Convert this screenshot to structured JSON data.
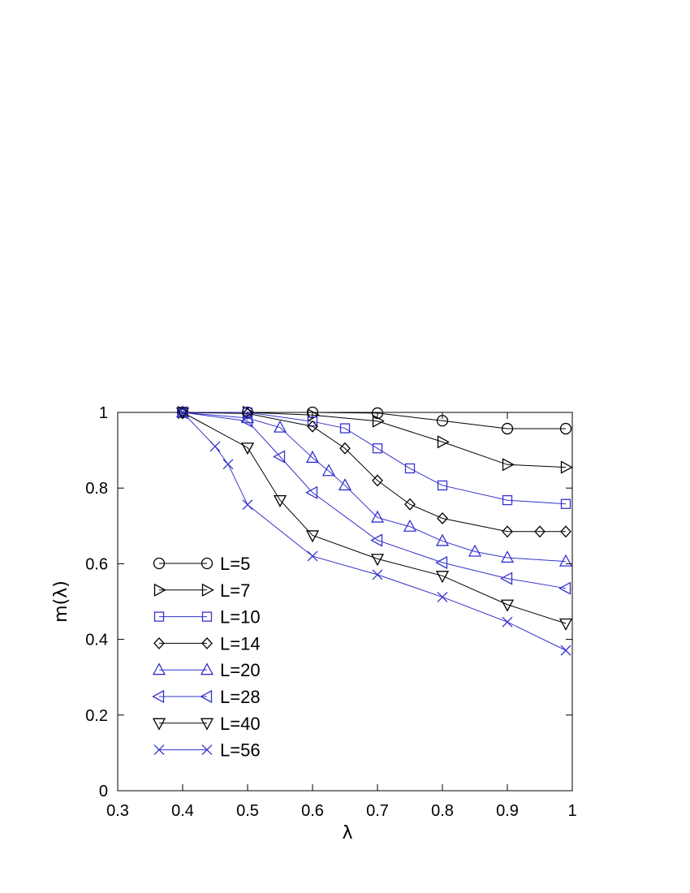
{
  "chart_data": {
    "type": "line",
    "xlabel": "λ",
    "ylabel": "m(λ)",
    "xlim": [
      0.3,
      1.0
    ],
    "ylim": [
      0,
      1.0
    ],
    "xticks": [
      "0.3",
      "0.4",
      "0.5",
      "0.6",
      "0.7",
      "0.8",
      "0.9",
      "1"
    ],
    "yticks": [
      "0",
      "0.2",
      "0.4",
      "0.6",
      "0.8",
      "1"
    ],
    "xtick_values": [
      0.3,
      0.4,
      0.5,
      0.6,
      0.7,
      0.8,
      0.9,
      1.0
    ],
    "ytick_values": [
      0,
      0.2,
      0.4,
      0.6,
      0.8,
      1.0
    ],
    "grid": false,
    "legend_position": "lower-left",
    "series": [
      {
        "name": "L=5",
        "marker": "circle",
        "color": "#000000",
        "x": [
          0.4,
          0.5,
          0.6,
          0.7,
          0.8,
          0.9,
          0.99
        ],
        "y": [
          1.0,
          1.0,
          1.0,
          0.998,
          0.978,
          0.957,
          0.957
        ]
      },
      {
        "name": "L=7",
        "marker": "triangle-right",
        "color": "#000000",
        "x": [
          0.4,
          0.5,
          0.6,
          0.7,
          0.8,
          0.9,
          0.99
        ],
        "y": [
          1.0,
          1.0,
          0.993,
          0.977,
          0.922,
          0.862,
          0.855
        ]
      },
      {
        "name": "L=10",
        "marker": "square",
        "color": "#3333cc",
        "x": [
          0.4,
          0.5,
          0.6,
          0.65,
          0.7,
          0.75,
          0.8,
          0.9,
          0.99
        ],
        "y": [
          1.0,
          1.0,
          0.976,
          0.958,
          0.905,
          0.852,
          0.807,
          0.768,
          0.758
        ]
      },
      {
        "name": "L=14",
        "marker": "diamond",
        "color": "#000000",
        "x": [
          0.4,
          0.5,
          0.6,
          0.65,
          0.7,
          0.75,
          0.8,
          0.9,
          0.95,
          0.99
        ],
        "y": [
          1.0,
          0.997,
          0.963,
          0.905,
          0.82,
          0.757,
          0.72,
          0.685,
          0.685,
          0.685
        ]
      },
      {
        "name": "L=20",
        "marker": "triangle-up",
        "color": "#3333cc",
        "x": [
          0.4,
          0.5,
          0.55,
          0.6,
          0.625,
          0.65,
          0.7,
          0.75,
          0.8,
          0.85,
          0.9,
          0.99
        ],
        "y": [
          1.0,
          0.985,
          0.96,
          0.88,
          0.845,
          0.807,
          0.722,
          0.698,
          0.66,
          0.632,
          0.616,
          0.606
        ]
      },
      {
        "name": "L=28",
        "marker": "triangle-left",
        "color": "#3333cc",
        "x": [
          0.4,
          0.5,
          0.55,
          0.6,
          0.7,
          0.8,
          0.9,
          0.99
        ],
        "y": [
          1.0,
          0.977,
          0.883,
          0.788,
          0.662,
          0.603,
          0.561,
          0.535
        ]
      },
      {
        "name": "L=40",
        "marker": "triangle-down",
        "color": "#000000",
        "x": [
          0.4,
          0.5,
          0.55,
          0.6,
          0.7,
          0.8,
          0.9,
          0.99
        ],
        "y": [
          1.0,
          0.907,
          0.768,
          0.675,
          0.613,
          0.568,
          0.492,
          0.442
        ]
      },
      {
        "name": "L=56",
        "marker": "cross",
        "color": "#3333cc",
        "x": [
          0.4,
          0.45,
          0.47,
          0.5,
          0.6,
          0.7,
          0.8,
          0.9,
          0.99
        ],
        "y": [
          1.0,
          0.91,
          0.863,
          0.756,
          0.62,
          0.571,
          0.512,
          0.446,
          0.371
        ]
      }
    ]
  }
}
